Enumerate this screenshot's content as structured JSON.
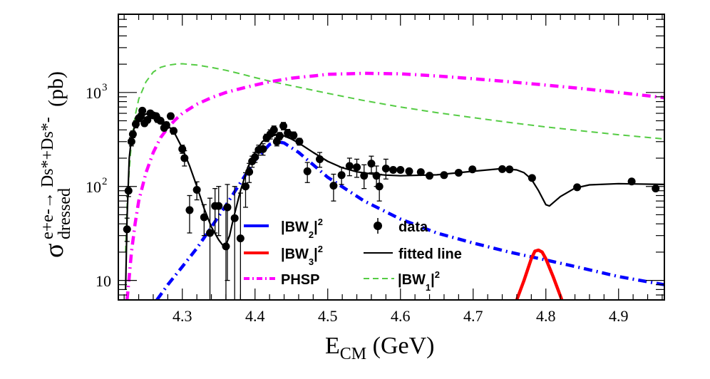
{
  "chart_data": {
    "type": "line",
    "title": "",
    "xlabel": "E_CM (GeV)",
    "xlabel_main": "E",
    "xlabel_sub": "CM",
    "xlabel_unit": " (GeV)",
    "ylabel": "σ_dressed^{e+e- → Ds*+Ds*-} (pb)",
    "ylabel_main": "σ",
    "ylabel_sub": "dressed",
    "ylabel_sup": "e+e-→ Ds*+Ds*-",
    "ylabel_unit": "(pb)",
    "xlim": [
      4.212,
      4.963
    ],
    "ylim": [
      6.2,
      6800
    ],
    "yscale": "log",
    "grid": false,
    "xticks": [
      4.3,
      4.4,
      4.5,
      4.6,
      4.7,
      4.8,
      4.9
    ],
    "xtick_labels": [
      "4.3",
      "4.4",
      "4.5",
      "4.6",
      "4.7",
      "4.8",
      "4.9"
    ],
    "yticks": [
      10,
      100,
      1000
    ],
    "ytick_labels": [
      {
        "base": "10",
        "exp": ""
      },
      {
        "base": "10",
        "exp": "2"
      },
      {
        "base": "10",
        "exp": "3"
      }
    ],
    "legend": {
      "placement": "bottom-center",
      "entries": [
        {
          "key": "bw2",
          "label_main": "|BW",
          "label_sub": "2",
          "label_sup": "2",
          "style": "solid-thick",
          "color": "#0000ff"
        },
        {
          "key": "bw3",
          "label_main": "|BW",
          "label_sub": "3",
          "label_sup": "2",
          "style": "solid-thick",
          "color": "#ff0000"
        },
        {
          "key": "phsp",
          "label_main": "PHSP",
          "label_sub": "",
          "label_sup": "",
          "style": "dash-dot",
          "color": "#ff00ff"
        },
        {
          "key": "data",
          "label_main": "data",
          "label_sub": "",
          "label_sup": "",
          "style": "marker",
          "color": "#000000"
        },
        {
          "key": "fit",
          "label_main": "fitted line",
          "label_sub": "",
          "label_sup": "",
          "style": "solid",
          "color": "#000000"
        },
        {
          "key": "bw1",
          "label_main": "|BW",
          "label_sub": "1",
          "label_sup": "2",
          "style": "dashed",
          "color": "#55cc44"
        }
      ]
    },
    "series": [
      {
        "name": "data",
        "type": "scatter",
        "color": "#000000",
        "points": [
          {
            "x": 4.224,
            "y": 35,
            "lo": 26,
            "hi": 46
          },
          {
            "x": 4.226,
            "y": 90,
            "lo": 78,
            "hi": 100
          },
          {
            "x": 4.23,
            "y": 300,
            "lo": 270,
            "hi": 330
          },
          {
            "x": 4.232,
            "y": 360,
            "lo": 330,
            "hi": 390
          },
          {
            "x": 4.236,
            "y": 460,
            "lo": 420,
            "hi": 500
          },
          {
            "x": 4.24,
            "y": 530,
            "lo": 490,
            "hi": 570
          },
          {
            "x": 4.243,
            "y": 560,
            "lo": 520,
            "hi": 600
          },
          {
            "x": 4.245,
            "y": 640,
            "lo": 600,
            "hi": 680
          },
          {
            "x": 4.248,
            "y": 470,
            "lo": 440,
            "hi": 500
          },
          {
            "x": 4.252,
            "y": 510,
            "lo": 475,
            "hi": 545
          },
          {
            "x": 4.256,
            "y": 600,
            "lo": 560,
            "hi": 640
          },
          {
            "x": 4.26,
            "y": 570,
            "lo": 530,
            "hi": 610
          },
          {
            "x": 4.264,
            "y": 560,
            "lo": 520,
            "hi": 600
          },
          {
            "x": 4.266,
            "y": 520,
            "lo": 480,
            "hi": 560
          },
          {
            "x": 4.27,
            "y": 500,
            "lo": 465,
            "hi": 535
          },
          {
            "x": 4.275,
            "y": 420,
            "lo": 390,
            "hi": 455
          },
          {
            "x": 4.278,
            "y": 450,
            "lo": 415,
            "hi": 485
          },
          {
            "x": 4.284,
            "y": 560,
            "lo": 520,
            "hi": 600
          },
          {
            "x": 4.288,
            "y": 390,
            "lo": 360,
            "hi": 420
          },
          {
            "x": 4.3,
            "y": 250,
            "lo": 225,
            "hi": 275
          },
          {
            "x": 4.303,
            "y": 200,
            "lo": 165,
            "hi": 240
          },
          {
            "x": 4.31,
            "y": 56,
            "lo": 32,
            "hi": 80
          },
          {
            "x": 4.32,
            "y": 92,
            "lo": 72,
            "hi": 112
          },
          {
            "x": 4.33,
            "y": 47,
            "lo": 30,
            "hi": 64
          },
          {
            "x": 4.338,
            "y": 32,
            "lo": 4,
            "hi": 75
          },
          {
            "x": 4.345,
            "y": 62,
            "lo": 32,
            "hi": 95
          },
          {
            "x": 4.35,
            "y": 62,
            "lo": 30,
            "hi": 100
          },
          {
            "x": 4.36,
            "y": 23,
            "lo": 4,
            "hi": 58
          },
          {
            "x": 4.362,
            "y": 60,
            "lo": 10,
            "hi": 105
          },
          {
            "x": 4.372,
            "y": 46,
            "lo": 4,
            "hi": 100
          },
          {
            "x": 4.38,
            "y": 28,
            "lo": 4,
            "hi": 85
          },
          {
            "x": 4.387,
            "y": 100,
            "lo": 60,
            "hi": 140
          },
          {
            "x": 4.392,
            "y": 143,
            "lo": 110,
            "hi": 176
          },
          {
            "x": 4.396,
            "y": 185,
            "lo": 160,
            "hi": 210
          },
          {
            "x": 4.4,
            "y": 205,
            "lo": 180,
            "hi": 230
          },
          {
            "x": 4.405,
            "y": 245,
            "lo": 215,
            "hi": 275
          },
          {
            "x": 4.411,
            "y": 250,
            "lo": 215,
            "hi": 285
          },
          {
            "x": 4.416,
            "y": 330,
            "lo": 300,
            "hi": 360
          },
          {
            "x": 4.421,
            "y": 360,
            "lo": 320,
            "hi": 400
          },
          {
            "x": 4.426,
            "y": 400,
            "lo": 360,
            "hi": 440
          },
          {
            "x": 4.43,
            "y": 300,
            "lo": 270,
            "hi": 330
          },
          {
            "x": 4.434,
            "y": 345,
            "lo": 315,
            "hi": 375
          },
          {
            "x": 4.439,
            "y": 440,
            "lo": 400,
            "hi": 480
          },
          {
            "x": 4.445,
            "y": 370,
            "lo": 335,
            "hi": 405
          },
          {
            "x": 4.453,
            "y": 350,
            "lo": 320,
            "hi": 380
          },
          {
            "x": 4.461,
            "y": 300,
            "lo": 275,
            "hi": 325
          },
          {
            "x": 4.472,
            "y": 145,
            "lo": 110,
            "hi": 180
          },
          {
            "x": 4.489,
            "y": 195,
            "lo": 160,
            "hi": 230
          },
          {
            "x": 4.508,
            "y": 102,
            "lo": 70,
            "hi": 135
          },
          {
            "x": 4.519,
            "y": 132,
            "lo": 105,
            "hi": 160
          },
          {
            "x": 4.53,
            "y": 165,
            "lo": 130,
            "hi": 200
          },
          {
            "x": 4.54,
            "y": 160,
            "lo": 125,
            "hi": 195
          },
          {
            "x": 4.55,
            "y": 130,
            "lo": 95,
            "hi": 170
          },
          {
            "x": 4.56,
            "y": 175,
            "lo": 140,
            "hi": 210
          },
          {
            "x": 4.567,
            "y": 130,
            "lo": 100,
            "hi": 165
          },
          {
            "x": 4.571,
            "y": 100,
            "lo": 70,
            "hi": 135
          },
          {
            "x": 4.58,
            "y": 155,
            "lo": 120,
            "hi": 195
          },
          {
            "x": 4.59,
            "y": 150
          },
          {
            "x": 4.6,
            "y": 150
          },
          {
            "x": 4.612,
            "y": 145
          },
          {
            "x": 4.628,
            "y": 142
          },
          {
            "x": 4.64,
            "y": 130
          },
          {
            "x": 4.66,
            "y": 132
          },
          {
            "x": 4.68,
            "y": 140
          },
          {
            "x": 4.699,
            "y": 152
          },
          {
            "x": 4.74,
            "y": 153
          },
          {
            "x": 4.75,
            "y": 152
          },
          {
            "x": 4.781,
            "y": 123
          },
          {
            "x": 4.843,
            "y": 98
          },
          {
            "x": 4.918,
            "y": 113
          },
          {
            "x": 4.951,
            "y": 95
          }
        ]
      },
      {
        "name": "fitted line",
        "type": "line",
        "color": "#000000",
        "x": [
          4.222,
          4.224,
          4.227,
          4.23,
          4.235,
          4.24,
          4.25,
          4.26,
          4.27,
          4.28,
          4.29,
          4.3,
          4.31,
          4.32,
          4.33,
          4.34,
          4.35,
          4.355,
          4.36,
          4.365,
          4.37,
          4.38,
          4.39,
          4.4,
          4.41,
          4.42,
          4.43,
          4.44,
          4.45,
          4.46,
          4.48,
          4.5,
          4.52,
          4.54,
          4.56,
          4.58,
          4.6,
          4.65,
          4.7,
          4.74,
          4.76,
          4.77,
          4.78,
          4.79,
          4.8,
          4.805,
          4.82,
          4.84,
          4.86,
          4.9,
          4.963
        ],
        "y": [
          8,
          45,
          200,
          330,
          450,
          530,
          590,
          580,
          520,
          450,
          360,
          255,
          165,
          100,
          58,
          37,
          27,
          24,
          24,
          30,
          45,
          90,
          160,
          230,
          300,
          340,
          355,
          345,
          320,
          290,
          230,
          185,
          158,
          143,
          136,
          132,
          130,
          133,
          145,
          155,
          150,
          140,
          120,
          90,
          64,
          62,
          78,
          96,
          104,
          107,
          105
        ]
      },
      {
        "name": "|BW2|^2",
        "type": "line",
        "color": "#0000ff",
        "style": "dash-dot-thick",
        "x": [
          4.265,
          4.28,
          4.3,
          4.32,
          4.34,
          4.36,
          4.38,
          4.4,
          4.42,
          4.43,
          4.44,
          4.46,
          4.48,
          4.5,
          4.55,
          4.6,
          4.65,
          4.7,
          4.75,
          4.8,
          4.85,
          4.9,
          4.963
        ],
        "y": [
          6.2,
          9,
          14,
          22,
          37,
          63,
          110,
          190,
          280,
          300,
          290,
          230,
          170,
          125,
          70,
          45,
          32,
          25,
          20,
          16.5,
          13.5,
          11,
          9
        ]
      },
      {
        "name": "|BW3|^2",
        "type": "line",
        "color": "#ff0000",
        "style": "solid-thick",
        "x": [
          4.76,
          4.77,
          4.78,
          4.785,
          4.79,
          4.795,
          4.8,
          4.81,
          4.822
        ],
        "y": [
          6.2,
          10,
          17,
          20.5,
          21,
          20,
          17,
          11,
          6.2
        ]
      },
      {
        "name": "PHSP",
        "type": "line",
        "color": "#ff00ff",
        "style": "dash-dot-thick",
        "x": [
          4.224,
          4.226,
          4.23,
          4.235,
          4.24,
          4.25,
          4.26,
          4.27,
          4.28,
          4.29,
          4.3,
          4.32,
          4.34,
          4.36,
          4.38,
          4.4,
          4.42,
          4.45,
          4.48,
          4.5,
          4.55,
          4.6,
          4.65,
          4.7,
          4.75,
          4.8,
          4.85,
          4.9,
          4.963
        ],
        "y": [
          6.2,
          9,
          20,
          40,
          70,
          140,
          230,
          330,
          420,
          510,
          600,
          750,
          880,
          1000,
          1100,
          1200,
          1300,
          1420,
          1500,
          1560,
          1600,
          1580,
          1500,
          1400,
          1300,
          1200,
          1100,
          1000,
          880
        ]
      },
      {
        "name": "|BW1|^2",
        "type": "line",
        "color": "#55cc44",
        "style": "dashed",
        "x": [
          4.222,
          4.224,
          4.227,
          4.23,
          4.235,
          4.24,
          4.25,
          4.26,
          4.27,
          4.28,
          4.29,
          4.3,
          4.32,
          4.34,
          4.36,
          4.38,
          4.4,
          4.42,
          4.45,
          4.5,
          4.55,
          4.6,
          4.65,
          4.7,
          4.75,
          4.8,
          4.85,
          4.9,
          4.963
        ],
        "y": [
          20,
          60,
          150,
          300,
          560,
          850,
          1300,
          1650,
          1850,
          1950,
          2000,
          2020,
          1960,
          1850,
          1720,
          1580,
          1440,
          1320,
          1180,
          980,
          820,
          700,
          610,
          540,
          480,
          430,
          390,
          355,
          320
        ]
      }
    ]
  }
}
